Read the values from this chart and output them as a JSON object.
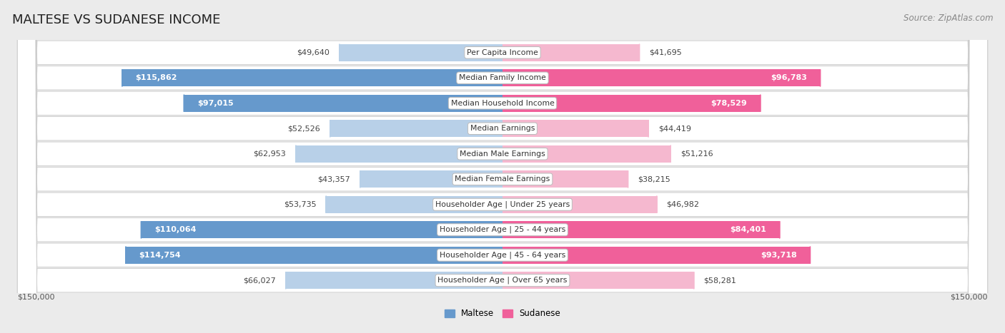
{
  "title": "MALTESE VS SUDANESE INCOME",
  "source": "Source: ZipAtlas.com",
  "categories": [
    "Per Capita Income",
    "Median Family Income",
    "Median Household Income",
    "Median Earnings",
    "Median Male Earnings",
    "Median Female Earnings",
    "Householder Age | Under 25 years",
    "Householder Age | 25 - 44 years",
    "Householder Age | 45 - 64 years",
    "Householder Age | Over 65 years"
  ],
  "maltese_values": [
    49640,
    115862,
    97015,
    52526,
    62953,
    43357,
    53735,
    110064,
    114754,
    66027
  ],
  "sudanese_values": [
    41695,
    96783,
    78529,
    44419,
    51216,
    38215,
    46982,
    84401,
    93718,
    58281
  ],
  "maltese_labels": [
    "$49,640",
    "$115,862",
    "$97,015",
    "$52,526",
    "$62,953",
    "$43,357",
    "$53,735",
    "$110,064",
    "$114,754",
    "$66,027"
  ],
  "sudanese_labels": [
    "$41,695",
    "$96,783",
    "$78,529",
    "$44,419",
    "$51,216",
    "$38,215",
    "$46,982",
    "$84,401",
    "$93,718",
    "$58,281"
  ],
  "max_value": 150000,
  "x_label_left": "$150,000",
  "x_label_right": "$150,000",
  "maltese_color_light": "#b8d0e8",
  "maltese_color_dark": "#6699cc",
  "sudanese_color_light": "#f5b8cf",
  "sudanese_color_dark": "#f0609a",
  "bg_color": "#ebebeb",
  "row_bg_even": "#f5f5f5",
  "row_bg_odd": "#efefef",
  "legend_maltese": "Maltese",
  "legend_sudanese": "Sudanese",
  "title_fontsize": 13,
  "source_fontsize": 8.5,
  "label_fontsize": 8,
  "category_fontsize": 7.8,
  "axis_fontsize": 8,
  "maltese_threshold": 80000,
  "sudanese_threshold": 70000
}
